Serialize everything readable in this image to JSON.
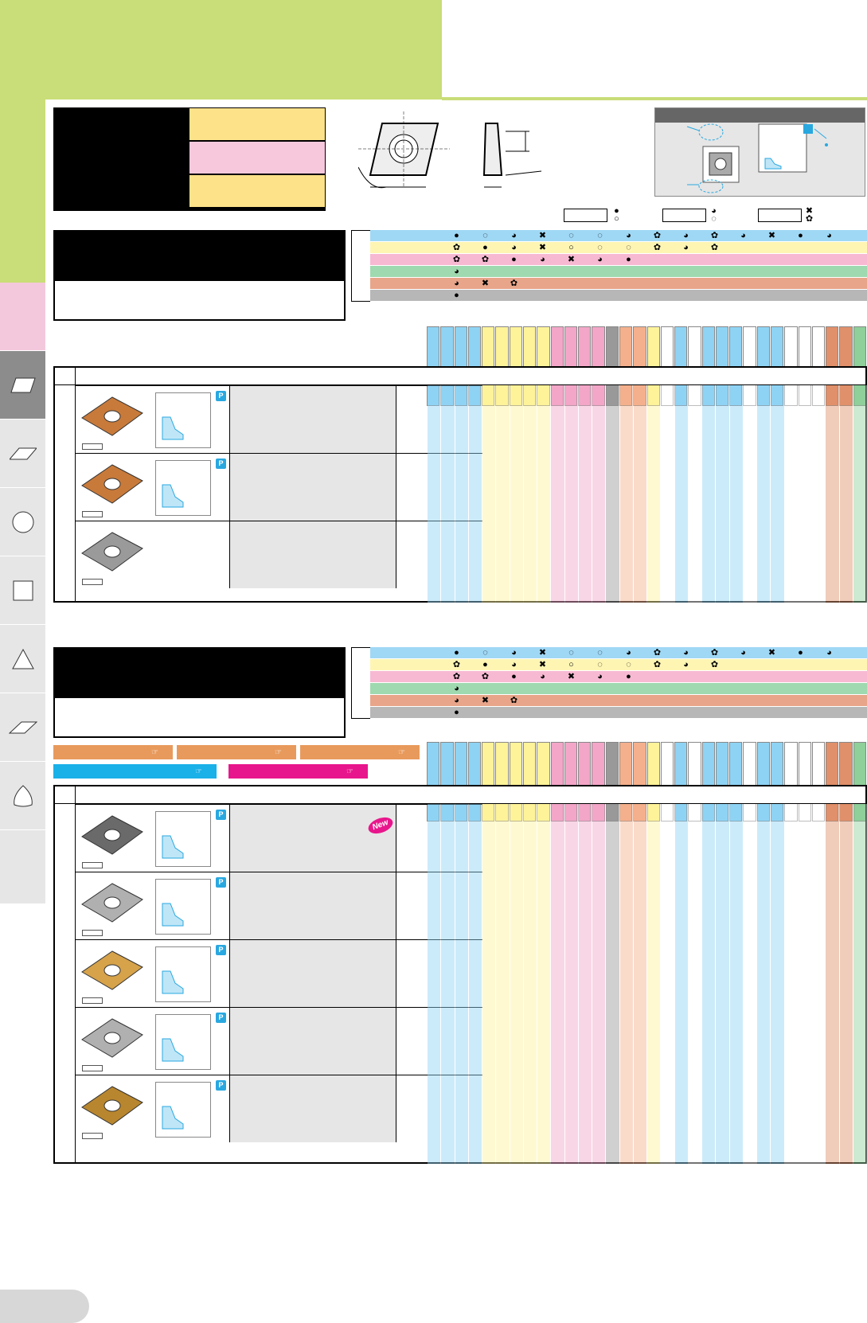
{
  "page": {
    "background_green": "#c9dd78",
    "side_tab_pink": "#f4c8dc",
    "side_tab_active": "#8c8c8c"
  },
  "side_nav": {
    "icons": [
      "rhombus-80-icon",
      "rhombus-55-icon",
      "circle-icon",
      "square-icon",
      "triangle-icon",
      "rhombus-35-icon",
      "trigon-icon"
    ]
  },
  "grade_colors": [
    "#fde28a",
    "#f7c8dc",
    "#fde28a"
  ],
  "material_rows": [
    {
      "color": "#9fd8f5",
      "marks": "● ◌ ◕ ✖ ◌ ◌ ◕ ✿ ◕ ✿ ◕ ✖ ● ◕"
    },
    {
      "color": "#fff5b3",
      "marks": "✿ ● ◕ ✖ ○ ◌ ◌ ✿ ◕ ✿"
    },
    {
      "color": "#f7b9d2",
      "marks": "✿ ✿ ● ◕ ✖ ◕ ●"
    },
    {
      "color": "#9fd9b0",
      "marks": "◕"
    },
    {
      "color": "#e8a58a",
      "marks": "◕ ✖ ✿"
    },
    {
      "color": "#b7b7b7",
      "marks": "●"
    }
  ],
  "column_colors": [
    "#8fd3f4",
    "#8fd3f4",
    "#8fd3f4",
    "#8fd3f4",
    "#fff39a",
    "#fff39a",
    "#fff39a",
    "#fff39a",
    "#fff39a",
    "#f3a6c8",
    "#f3a6c8",
    "#f3a6c8",
    "#f3a6c8",
    "#999999",
    "#f4b08c",
    "#f4b08c",
    "#fff39a",
    "#ffffff",
    "#8fd3f4",
    "#ffffff",
    "#8fd3f4",
    "#8fd3f4",
    "#8fd3f4",
    "#ffffff",
    "#8fd3f4",
    "#8fd3f4",
    "#ffffff",
    "#ffffff",
    "#ffffff",
    "#e0906a",
    "#e0906a",
    "#8fcf9a"
  ],
  "section1": {
    "products": [
      {
        "badge": "P",
        "color": "#c87a3a"
      },
      {
        "badge": "P",
        "color": "#c87a3a"
      },
      {
        "badge": "",
        "color": "#9a9a9a"
      }
    ]
  },
  "section2": {
    "pills_row1": [
      "",
      "",
      ""
    ],
    "pills_row2": [
      "",
      ""
    ],
    "new_badge": "New",
    "products": [
      {
        "badge": "P",
        "color": "#6a6a6a"
      },
      {
        "badge": "P",
        "color": "#b0b0b0"
      },
      {
        "badge": "P",
        "color": "#d6a24a"
      },
      {
        "badge": "P",
        "color": "#b0b0b0"
      },
      {
        "badge": "P",
        "color": "#b8862e"
      }
    ]
  },
  "inset": {
    "badge": "P"
  }
}
